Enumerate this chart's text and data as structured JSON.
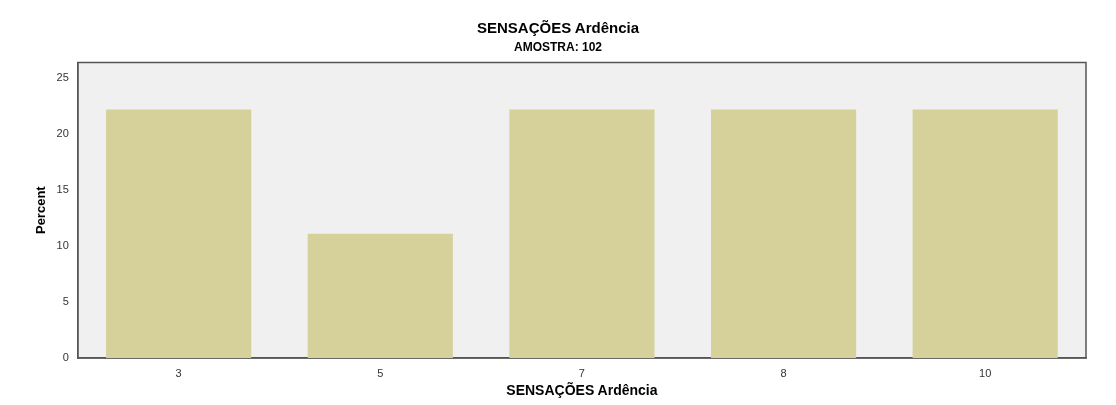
{
  "chart_data": {
    "type": "bar",
    "title": "SENSAÇÕES Ardência",
    "subtitle": "AMOSTRA: 102",
    "xlabel": "SENSAÇÕES Ardência",
    "ylabel": "Percent",
    "categories": [
      "3",
      "5",
      "7",
      "8",
      "10"
    ],
    "values": [
      22.2,
      11.1,
      22.2,
      22.2,
      22.2
    ],
    "color": "#d6d19b",
    "ylim": [
      0,
      26.4
    ],
    "yticks": [
      0,
      5,
      10,
      15,
      20,
      25
    ],
    "grid": false,
    "legend": false
  }
}
